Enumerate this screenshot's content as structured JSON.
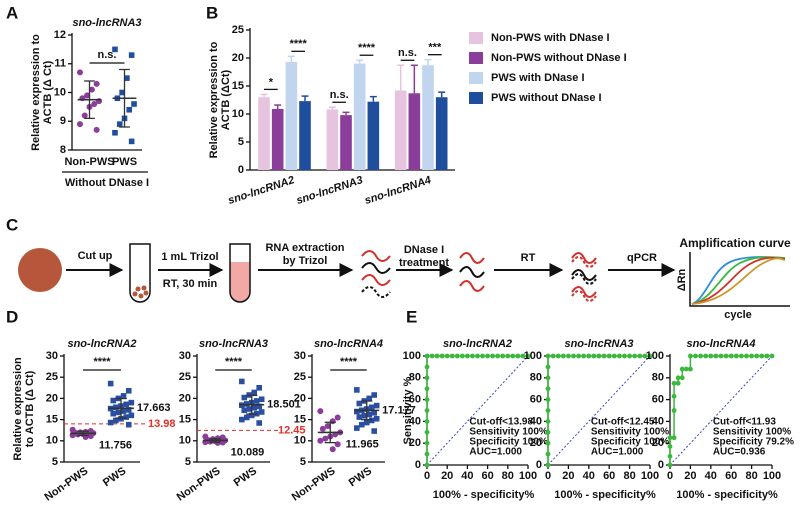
{
  "chart_data": [
    {
      "type": "strip",
      "panel": "A",
      "title": "sno-lncRNA3",
      "ylabel": [
        "Relative expression to",
        "ACTB (Δ Ct)"
      ],
      "xlabel": "Without DNase I",
      "categories": [
        "Non-PWS",
        "PWS"
      ],
      "ylim": [
        8,
        12
      ],
      "yticks": [
        8,
        9,
        10,
        11,
        12
      ],
      "annotation": "n.s.",
      "groups": [
        {
          "color": "#8a3d99",
          "marker": "circle",
          "values": [
            10.7,
            10.3,
            10.1,
            9.9,
            9.8,
            9.7,
            9.6,
            9.5,
            9.2,
            8.9,
            8.7
          ],
          "mean": 9.75,
          "sd": 0.65
        },
        {
          "color": "#1f4e9c",
          "marker": "square",
          "values": [
            11.5,
            11.3,
            10.5,
            10.0,
            9.8,
            9.6,
            9.4,
            9.1,
            8.9,
            8.6,
            8.3
          ],
          "mean": 9.8,
          "sd": 1.0
        }
      ]
    },
    {
      "type": "bar",
      "panel": "B",
      "ylabel": [
        "Relative expression to",
        "ACTB (ΔCt)"
      ],
      "categories": [
        "sno-lncRNA2",
        "sno-lncRNA3",
        "sno-lncRNA4"
      ],
      "ylim": [
        0,
        25
      ],
      "yticks": [
        0,
        5,
        10,
        15,
        20,
        25
      ],
      "legend": "upper right",
      "series": [
        {
          "name": "Non-PWS with DNase I",
          "color": "#e6c3de",
          "values": [
            13.0,
            10.8,
            14.2
          ],
          "errors": [
            0.5,
            0.4,
            4.5
          ]
        },
        {
          "name": "Non-PWS without DNase I",
          "color": "#8a3d99",
          "values": [
            10.9,
            9.8,
            13.7
          ],
          "errors": [
            0.7,
            0.5,
            5.0
          ]
        },
        {
          "name": "PWS with DNase I",
          "color": "#c2d5ee",
          "values": [
            19.3,
            19.0,
            18.7
          ],
          "errors": [
            1.0,
            0.6,
            1.0
          ]
        },
        {
          "name": "PWS without DNase I",
          "color": "#1f4e9c",
          "values": [
            12.3,
            12.2,
            13.0
          ],
          "errors": [
            0.9,
            0.9,
            0.9
          ]
        }
      ],
      "significance": [
        [
          "*",
          "****"
        ],
        [
          "n.s.",
          "****"
        ],
        [
          "n.s.",
          "***"
        ]
      ]
    },
    {
      "type": "strip",
      "panel": "D",
      "title": "sno-lncRNA2",
      "ylabel": [
        "Relative expression",
        "to ACTB (Δ Ct)"
      ],
      "categories": [
        "Non-PWS",
        "PWS"
      ],
      "ylim": [
        5,
        30
      ],
      "yticks": [
        5,
        10,
        15,
        20,
        25,
        30
      ],
      "annotation": "****",
      "cutoff": 13.98,
      "mean_labels": true,
      "groups": [
        {
          "color": "#8a3d99",
          "marker": "circle",
          "values": [
            12.6,
            12.3,
            12.1,
            12.0,
            11.9,
            11.8,
            11.7,
            11.6,
            11.5,
            11.3,
            11.1,
            10.9
          ],
          "mean": 11.756,
          "sd": 0.5
        },
        {
          "color": "#2b4fa0",
          "marker": "square",
          "values": [
            23.5,
            21.8,
            20.6,
            20.0,
            19.5,
            19.0,
            18.6,
            18.2,
            17.9,
            17.6,
            17.3,
            17.0,
            16.7,
            16.4,
            16.0,
            15.6,
            15.2,
            14.8,
            14.3,
            13.8
          ],
          "mean": 17.663,
          "sd": 2.3
        }
      ]
    },
    {
      "type": "strip",
      "title": "sno-lncRNA3",
      "categories": [
        "Non-PWS",
        "PWS"
      ],
      "ylim": [
        5,
        30
      ],
      "yticks": [
        5,
        10,
        15,
        20,
        25,
        30
      ],
      "annotation": "****",
      "cutoff": 12.45,
      "mean_labels": true,
      "groups": [
        {
          "color": "#8a3d99",
          "marker": "circle",
          "values": [
            11.0,
            10.8,
            10.6,
            10.4,
            10.2,
            10.1,
            10.0,
            9.9,
            9.8,
            9.7,
            9.6,
            9.5
          ],
          "mean": 10.089,
          "sd": 0.4
        },
        {
          "color": "#2b4fa0",
          "marker": "square",
          "values": [
            24.0,
            22.5,
            21.4,
            20.8,
            20.2,
            19.8,
            19.4,
            19.0,
            18.7,
            18.4,
            18.1,
            17.8,
            17.5,
            17.2,
            16.8,
            16.4,
            16.0,
            15.5,
            15.0,
            14.2
          ],
          "mean": 18.501,
          "sd": 2.2
        }
      ]
    },
    {
      "type": "strip",
      "title": "sno-lncRNA4",
      "categories": [
        "Non-PWS",
        "PWS"
      ],
      "ylim": [
        5,
        30
      ],
      "yticks": [
        5,
        10,
        15,
        20,
        25,
        30
      ],
      "annotation": "****",
      "mean_labels": true,
      "groups": [
        {
          "color": "#8a3d99",
          "marker": "circle",
          "values": [
            17.0,
            15.5,
            14.6,
            13.5,
            12.8,
            12.0,
            11.5,
            11.0,
            10.5,
            10.0,
            9.2,
            8.0
          ],
          "mean": 11.965,
          "sd": 2.4
        },
        {
          "color": "#2b4fa0",
          "marker": "square",
          "values": [
            22.0,
            20.8,
            20.0,
            19.4,
            18.8,
            18.3,
            17.9,
            17.5,
            17.2,
            16.9,
            16.6,
            16.2,
            15.9,
            15.6,
            15.2,
            14.8,
            14.3,
            13.8,
            13.0,
            12.3
          ],
          "mean": 17.177,
          "sd": 2.2
        }
      ]
    },
    {
      "type": "line",
      "panel": "E",
      "title": "sno-lncRNA2",
      "ylabel": "Sensitivity %",
      "xlabel": "100% - specificity%",
      "color": "#3cb83c",
      "xlim": [
        0,
        100
      ],
      "ylim": [
        0,
        100
      ],
      "xticks": [
        0,
        20,
        40,
        60,
        80,
        100
      ],
      "yticks": [
        0,
        20,
        40,
        60,
        80,
        100
      ],
      "x": [
        0,
        0,
        0,
        0,
        0,
        0,
        0,
        0,
        0,
        0,
        0,
        5,
        10,
        15,
        20,
        25,
        30,
        35,
        40,
        45,
        50,
        55,
        60,
        65,
        70,
        75,
        80,
        85,
        90,
        95,
        100
      ],
      "values": [
        0,
        10,
        20,
        30,
        40,
        50,
        60,
        70,
        80,
        90,
        100,
        100,
        100,
        100,
        100,
        100,
        100,
        100,
        100,
        100,
        100,
        100,
        100,
        100,
        100,
        100,
        100,
        100,
        100,
        100,
        100
      ],
      "annotations": [
        "Cut-off<13.98",
        "Sensitivity 100%",
        "Specificity 100%",
        "AUC=1.000"
      ]
    },
    {
      "type": "line",
      "title": "sno-lncRNA3",
      "xlabel": "100% - specificity%",
      "color": "#3cb83c",
      "xlim": [
        0,
        100
      ],
      "ylim": [
        0,
        100
      ],
      "xticks": [
        0,
        20,
        40,
        60,
        80,
        100
      ],
      "yticks": [
        0,
        20,
        40,
        60,
        80,
        100
      ],
      "x": [
        0,
        0,
        0,
        0,
        0,
        0,
        0,
        0,
        0,
        0,
        0,
        5,
        10,
        15,
        20,
        25,
        30,
        35,
        40,
        45,
        50,
        55,
        60,
        65,
        70,
        75,
        80,
        85,
        90,
        95,
        100
      ],
      "values": [
        0,
        10,
        20,
        30,
        40,
        50,
        60,
        70,
        80,
        90,
        100,
        100,
        100,
        100,
        100,
        100,
        100,
        100,
        100,
        100,
        100,
        100,
        100,
        100,
        100,
        100,
        100,
        100,
        100,
        100,
        100
      ],
      "annotations": [
        "Cut-off<12.45",
        "Sensitivity 100%",
        "Specificity 100%",
        "AUC=1.000"
      ]
    },
    {
      "type": "line",
      "title": "sno-lncRNA4",
      "xlabel": "100% - specificity%",
      "color": "#3cb83c",
      "xlim": [
        0,
        100
      ],
      "ylim": [
        0,
        100
      ],
      "xticks": [
        0,
        20,
        40,
        60,
        80,
        100
      ],
      "yticks": [
        0,
        20,
        40,
        60,
        80,
        100
      ],
      "x": [
        0,
        0,
        0,
        0,
        4,
        4,
        4,
        4,
        8,
        8,
        12,
        12,
        16,
        20,
        20,
        25,
        30,
        35,
        40,
        45,
        50,
        55,
        60,
        65,
        70,
        75,
        80,
        85,
        90,
        95,
        100
      ],
      "values": [
        0,
        8,
        17,
        25,
        25,
        50,
        63,
        75,
        75,
        80,
        80,
        88,
        88,
        88,
        100,
        100,
        100,
        100,
        100,
        100,
        100,
        100,
        100,
        100,
        100,
        100,
        100,
        100,
        100,
        100,
        100
      ],
      "annotations": [
        "Cut-off<11.93",
        "Sensitivity 100%",
        "Specificity 79.2%",
        "AUC=0.936"
      ]
    }
  ],
  "diagram": {
    "panel": "C",
    "labels": [
      "Cut up",
      "1 mL Trizol",
      "RT, 30 min",
      "RNA extraction",
      "by Trizol",
      "DNase I",
      "treatment",
      "RT",
      "qPCR",
      "Amplification curve",
      "ΔRn",
      "cycle"
    ]
  }
}
